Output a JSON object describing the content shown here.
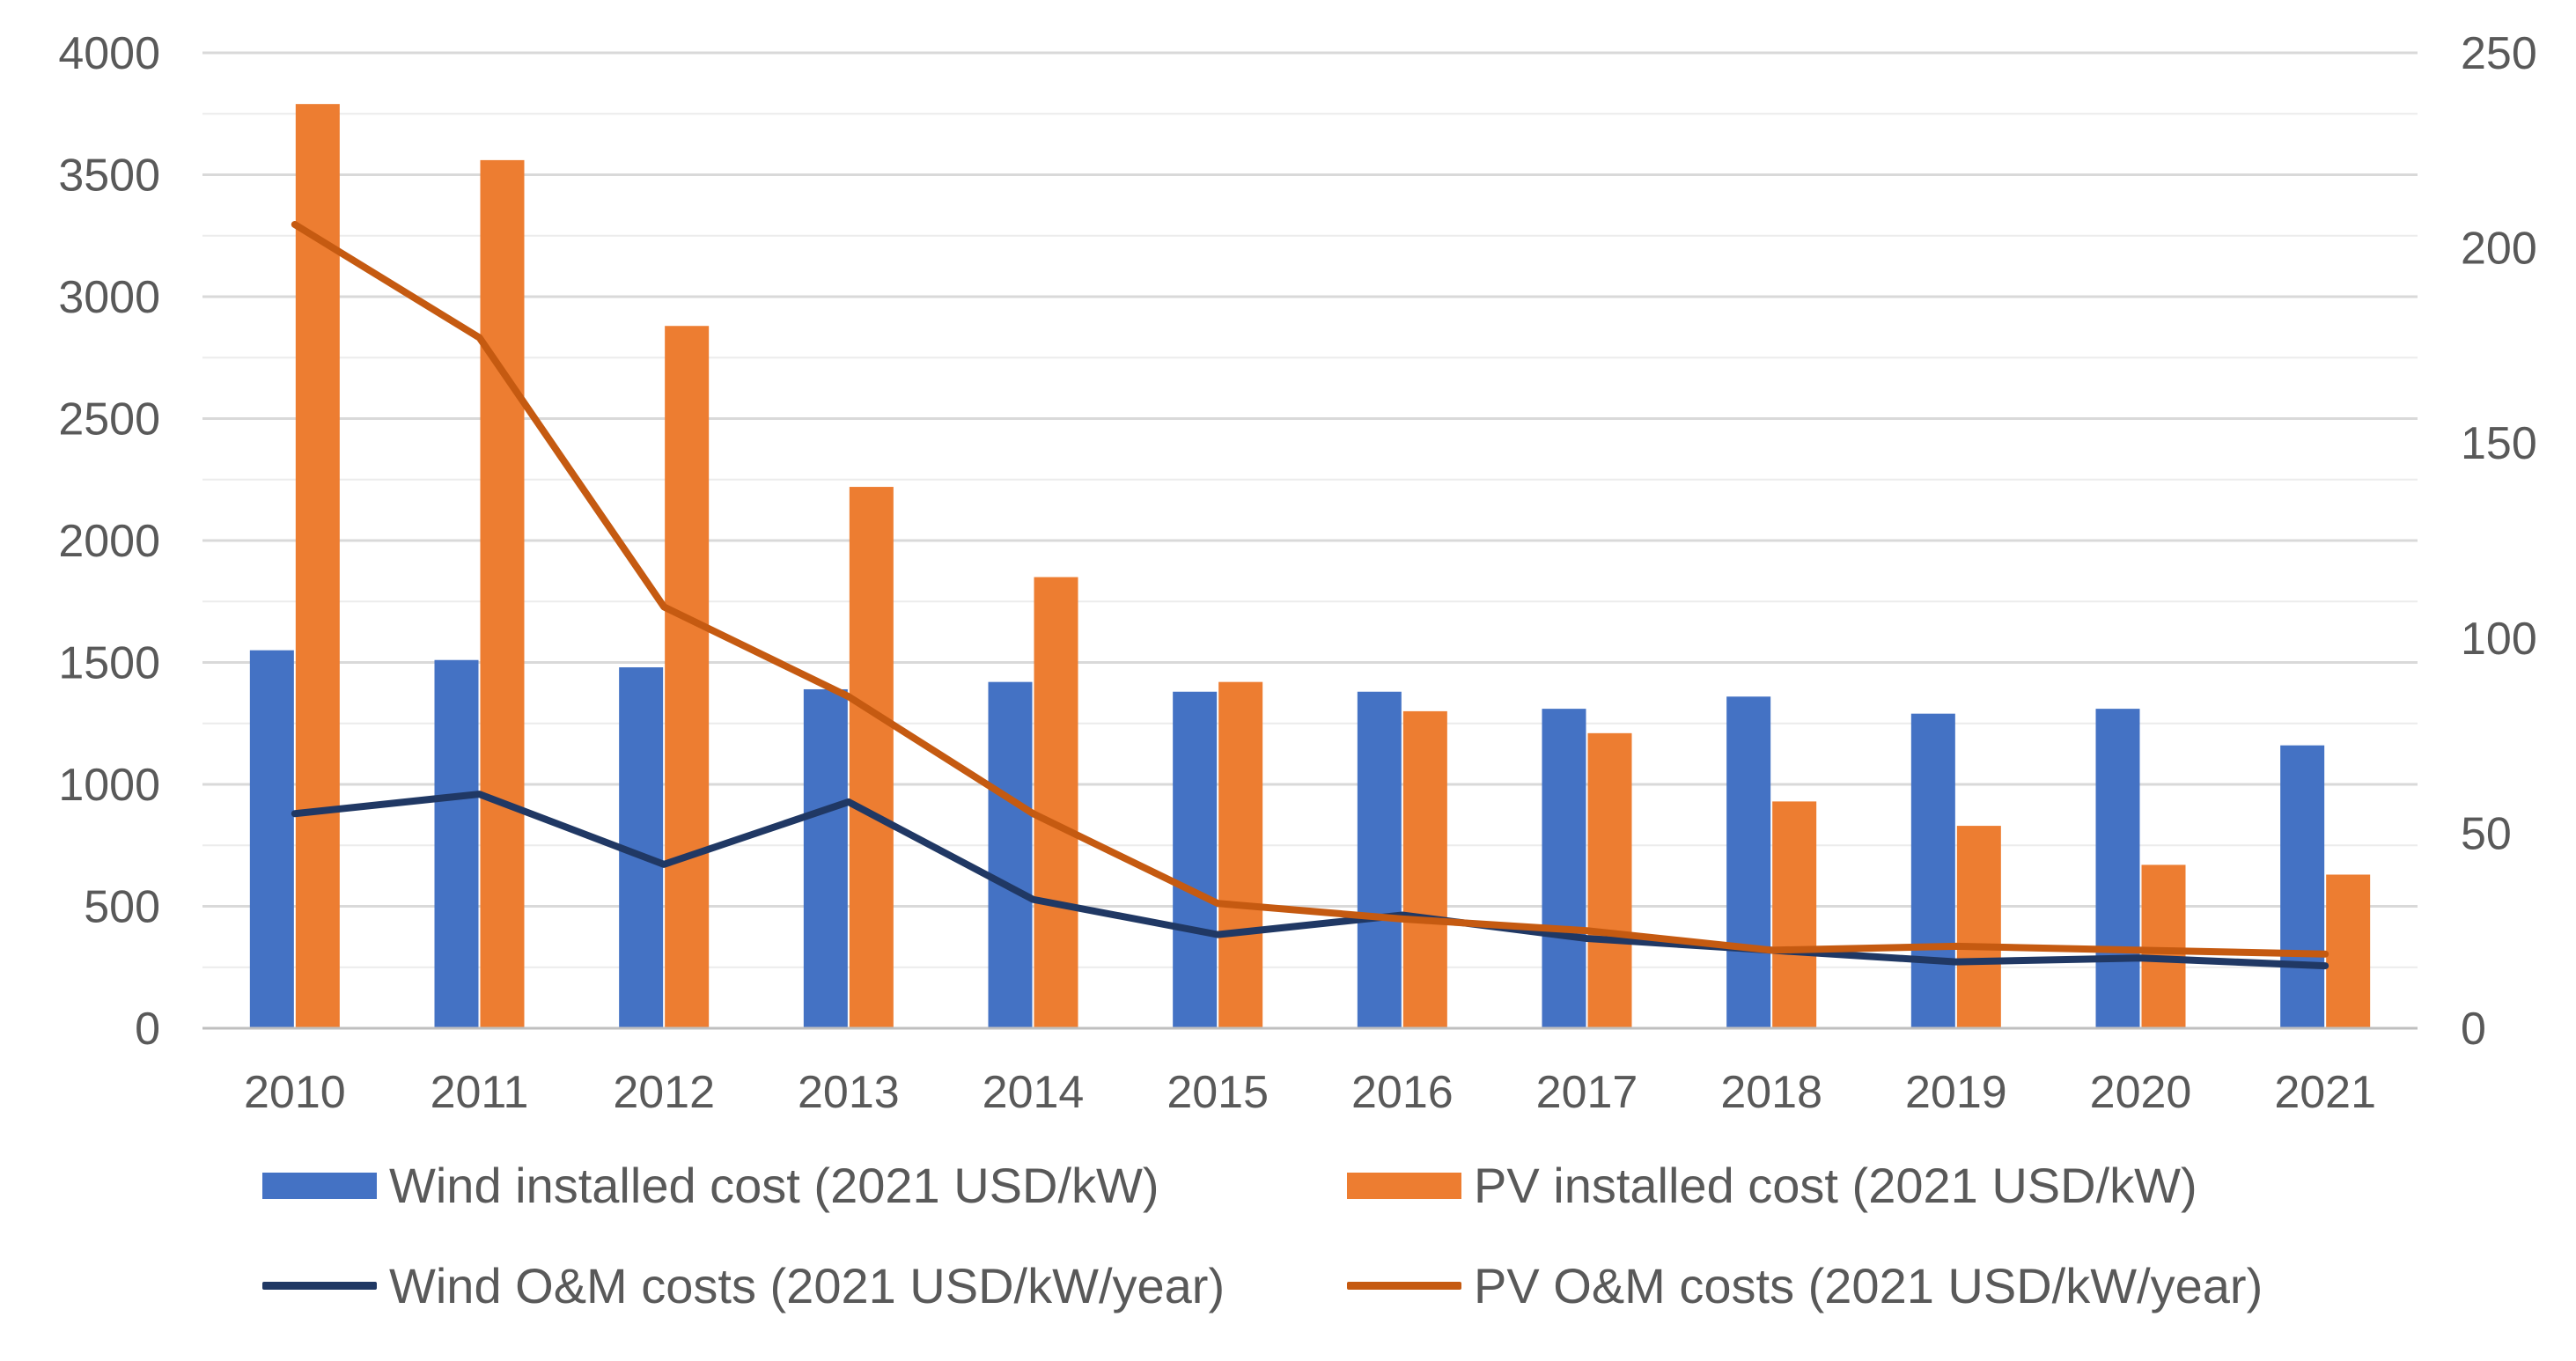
{
  "chart_data": {
    "type": "bar",
    "categories": [
      "2010",
      "2011",
      "2012",
      "2013",
      "2014",
      "2015",
      "2016",
      "2017",
      "2018",
      "2019",
      "2020",
      "2021"
    ],
    "title": "",
    "xlabel": "",
    "ylabel": "",
    "y_left": {
      "min": 0,
      "max": 4000,
      "ticks": [
        0,
        500,
        1000,
        1500,
        2000,
        2500,
        3000,
        3500,
        4000
      ]
    },
    "y_right": {
      "min": 0,
      "max": 250,
      "ticks": [
        0,
        50,
        100,
        150,
        200,
        250
      ]
    },
    "grid": true,
    "legend_position": "bottom",
    "series": [
      {
        "name": "Wind installed cost (2021 USD/kW)",
        "kind": "bar",
        "axis": "left",
        "color": "#4472C4",
        "values": [
          1550,
          1510,
          1480,
          1390,
          1420,
          1380,
          1380,
          1310,
          1360,
          1290,
          1310,
          1160
        ]
      },
      {
        "name": "PV installed cost (2021 USD/kW)",
        "kind": "bar",
        "axis": "left",
        "color": "#ED7D31",
        "values": [
          3790,
          3560,
          2880,
          2220,
          1850,
          1420,
          1300,
          1210,
          930,
          830,
          670,
          630
        ]
      },
      {
        "name": "Wind O&M costs (2021 USD/kW/year)",
        "kind": "line",
        "axis": "right",
        "color": "#203864",
        "values": [
          55,
          60,
          42,
          58,
          33,
          24,
          29,
          23,
          20,
          17,
          18,
          16
        ]
      },
      {
        "name": "PV O&M costs (2021 USD/kW/year)",
        "kind": "line",
        "axis": "right",
        "color": "#C55A11",
        "values": [
          206,
          177,
          108,
          85,
          55,
          32,
          28,
          25,
          20,
          21,
          20,
          19
        ]
      }
    ]
  }
}
